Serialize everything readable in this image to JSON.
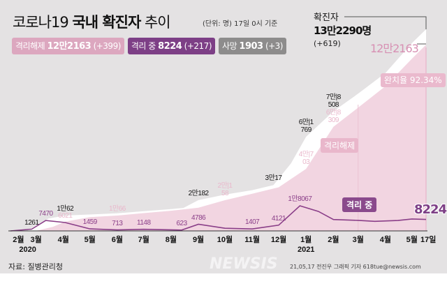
{
  "header": {
    "title_a": "코로나19",
    "title_b": "국내 확진자",
    "title_c": "추이",
    "unit": "(단위: 명)  17일 0시 기준"
  },
  "chips": [
    {
      "label": "격리해제",
      "value": "12만2163",
      "delta": "(+399)",
      "color": "#dca7bf"
    },
    {
      "label": "격리 중",
      "value": "8224",
      "delta": "(+217)",
      "color": "#7d3f86"
    },
    {
      "label": "사망",
      "value": "1903",
      "delta": "(+3)",
      "color": "#8d8c8c"
    }
  ],
  "callouts": {
    "total_label": "확진자",
    "total_value": "13만2290명",
    "total_delta": "(+619)",
    "cleared_value": "12만2163",
    "rate": "완치율 92.34%",
    "cleared_box": "격리해제",
    "isolation_box": "격리 중",
    "isolation_value": "8224"
  },
  "footer": {
    "source": "자료: 질병관리청",
    "credit": "21,05,17 전진우 그래픽 기자 618tue@newsis.com",
    "watermark": "NEWSIS"
  },
  "chart_data": {
    "type": "area",
    "x_start": "2020-02-01",
    "x_end": "2021-05-17",
    "x_ticks": [
      {
        "date": "2020-02-10",
        "label": "2월"
      },
      {
        "date": "2020-03-01",
        "label": "3월",
        "sub": "2020"
      },
      {
        "date": "2020-04-01",
        "label": "4월"
      },
      {
        "date": "2020-05-01",
        "label": "5월"
      },
      {
        "date": "2020-06-01",
        "label": "6월"
      },
      {
        "date": "2020-07-01",
        "label": "7월"
      },
      {
        "date": "2020-08-01",
        "label": "8월"
      },
      {
        "date": "2020-09-01",
        "label": "9월"
      },
      {
        "date": "2020-10-01",
        "label": "10월"
      },
      {
        "date": "2020-11-01",
        "label": "11월"
      },
      {
        "date": "2020-12-01",
        "label": "12월"
      },
      {
        "date": "2021-01-01",
        "label": "1월",
        "sub": "2021"
      },
      {
        "date": "2021-02-01",
        "label": "2월"
      },
      {
        "date": "2021-03-01",
        "label": "3월"
      },
      {
        "date": "2021-04-01",
        "label": "4월"
      },
      {
        "date": "2021-05-01",
        "label": "5월"
      },
      {
        "date": "2021-05-17",
        "label": "17일"
      }
    ],
    "series": [
      {
        "name": "확진자",
        "color": "#ffffff",
        "points": [
          [
            "2020-02-01",
            12
          ],
          [
            "2020-02-20",
            104
          ],
          [
            "2020-03-01",
            3736
          ],
          [
            "2020-03-15",
            8162
          ],
          [
            "2020-04-03",
            10062
          ],
          [
            "2020-05-01",
            10774
          ],
          [
            "2020-06-01",
            11541
          ],
          [
            "2020-07-01",
            12904
          ],
          [
            "2020-08-01",
            14336
          ],
          [
            "2020-08-15",
            15039
          ],
          [
            "2020-09-01",
            20182
          ],
          [
            "2020-10-01",
            23812
          ],
          [
            "2020-11-01",
            26732
          ],
          [
            "2020-11-25",
            30017
          ],
          [
            "2020-12-15",
            44364
          ],
          [
            "2021-01-01",
            61769
          ],
          [
            "2021-02-01",
            78508
          ],
          [
            "2021-03-01",
            90029
          ],
          [
            "2021-04-01",
            103639
          ],
          [
            "2021-05-01",
            123240
          ],
          [
            "2021-05-17",
            132290
          ]
        ]
      },
      {
        "name": "격리해제",
        "color": "#f2d5e1",
        "points": [
          [
            "2020-02-01",
            0
          ],
          [
            "2020-03-01",
            30
          ],
          [
            "2020-03-20",
            2612
          ],
          [
            "2020-04-03",
            6021
          ],
          [
            "2020-05-01",
            9072
          ],
          [
            "2020-06-01",
            10066
          ],
          [
            "2020-07-01",
            11684
          ],
          [
            "2020-08-01",
            13233
          ],
          [
            "2020-09-01",
            15198
          ],
          [
            "2020-10-01",
            20158
          ],
          [
            "2020-11-01",
            24395
          ],
          [
            "2020-12-01",
            28611
          ],
          [
            "2021-01-01",
            40703
          ],
          [
            "2021-02-01",
            68309
          ],
          [
            "2021-03-01",
            80839
          ],
          [
            "2021-04-01",
            95000
          ],
          [
            "2021-05-01",
            113000
          ],
          [
            "2021-05-17",
            122163
          ]
        ]
      },
      {
        "name": "격리 중",
        "color": "#8a3e88",
        "points": [
          [
            "2020-02-01",
            10
          ],
          [
            "2020-02-25",
            1261
          ],
          [
            "2020-03-12",
            7470
          ],
          [
            "2020-04-03",
            6021
          ],
          [
            "2020-05-01",
            1459
          ],
          [
            "2020-06-01",
            713
          ],
          [
            "2020-07-01",
            1148
          ],
          [
            "2020-08-13",
            623
          ],
          [
            "2020-09-01",
            4786
          ],
          [
            "2020-10-01",
            1900
          ],
          [
            "2020-11-01",
            1407
          ],
          [
            "2020-12-01",
            4121
          ],
          [
            "2020-12-25",
            18067
          ],
          [
            "2021-01-15",
            14000
          ],
          [
            "2021-02-01",
            8200
          ],
          [
            "2021-03-01",
            7600
          ],
          [
            "2021-03-20",
            6900
          ],
          [
            "2021-04-15",
            7500
          ],
          [
            "2021-05-01",
            8600
          ],
          [
            "2021-05-17",
            8224
          ]
        ]
      }
    ],
    "annotations": [
      {
        "series": 0,
        "date": "2020-04-03",
        "text": "1만62",
        "color": "#111"
      },
      {
        "series": 0,
        "date": "2020-09-01",
        "text": "2만182",
        "color": "#111"
      },
      {
        "series": 0,
        "date": "2020-11-25",
        "text": "3만17",
        "color": "#111"
      },
      {
        "series": 0,
        "date": "2021-01-01",
        "text": "6만|1769",
        "color": "#111"
      },
      {
        "series": 0,
        "date": "2021-02-01",
        "text": "7만|8508",
        "color": "#111"
      },
      {
        "series": 1,
        "date": "2020-06-01",
        "text": "1만66",
        "color": "#e9b7cb"
      },
      {
        "series": 1,
        "date": "2020-10-01",
        "text": "2만|158",
        "color": "#e9b7cb"
      },
      {
        "series": 1,
        "date": "2021-01-01",
        "text": "4만|703",
        "color": "#e9b7cb"
      },
      {
        "series": 1,
        "date": "2021-02-01",
        "text": "6만|8309",
        "color": "#e9b7cb"
      },
      {
        "series": 2,
        "date": "2020-02-25",
        "text": "1261",
        "color": "#111"
      },
      {
        "series": 2,
        "date": "2020-03-12",
        "text": "7470",
        "color": "#8a3e88"
      },
      {
        "series": 2,
        "date": "2020-04-03",
        "text": "6021",
        "color": "#e9b7cb"
      },
      {
        "series": 2,
        "date": "2020-05-01",
        "text": "1459",
        "color": "#8a3e88"
      },
      {
        "series": 2,
        "date": "2020-06-01",
        "text": "713",
        "color": "#8a3e88"
      },
      {
        "series": 2,
        "date": "2020-07-01",
        "text": "1148",
        "color": "#8a3e88"
      },
      {
        "series": 2,
        "date": "2020-08-13",
        "text": "623",
        "color": "#8a3e88"
      },
      {
        "series": 2,
        "date": "2020-09-01",
        "text": "4786",
        "color": "#8a3e88"
      },
      {
        "series": 2,
        "date": "2020-11-01",
        "text": "1407",
        "color": "#8a3e88"
      },
      {
        "series": 2,
        "date": "2020-12-01",
        "text": "4121",
        "color": "#8a3e88"
      },
      {
        "series": 2,
        "date": "2020-12-25",
        "text": "1만8067",
        "color": "#8a3e88"
      }
    ]
  }
}
